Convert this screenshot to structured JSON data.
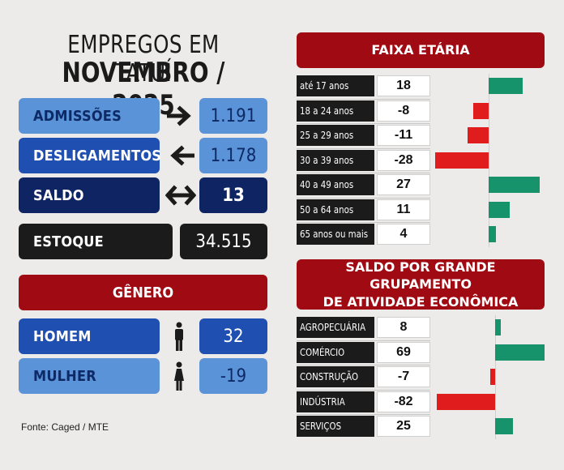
{
  "header": {
    "line1": "EMPREGOS EM TATUÍ",
    "line2": "NOVEMBRO / 2025"
  },
  "summary": [
    {
      "label": "ADMISSÕES",
      "value": "1.191",
      "arrow": "arrow-right-icon"
    },
    {
      "label": "DESLIGAMENTOS",
      "value": "1.178",
      "arrow": "arrow-left-icon"
    },
    {
      "label": "SALDO",
      "value": "13",
      "arrow": "arrow-left-right-icon"
    },
    {
      "label": "ESTOQUE",
      "value": "34.515"
    }
  ],
  "genero": {
    "title": "GÊNERO",
    "items": [
      {
        "label": "HOMEM",
        "value": "32",
        "icon": "man-icon"
      },
      {
        "label": "MULHER",
        "value": "-19",
        "icon": "woman-icon"
      }
    ]
  },
  "source": "Fonte: Caged / MTE",
  "colors": {
    "positive": "#16936a",
    "negative": "#e01c1c",
    "title_red": "#a00a12"
  },
  "chart_data": [
    {
      "type": "bar",
      "title": "FAIXA ETÁRIA",
      "orientation": "horizontal",
      "categories": [
        "até 17 anos",
        "18 a 24 anos",
        "25 a 29 anos",
        "30 a 39 anos",
        "40 a 49 anos",
        "50 a 64 anos",
        "65 anos ou mais"
      ],
      "values": [
        18,
        -8,
        -11,
        -28,
        27,
        11,
        4
      ],
      "grid": false
    },
    {
      "type": "bar",
      "title_line1": "SALDO POR GRANDE GRUPAMENTO",
      "title_line2": "DE ATIVIDADE ECONÔMICA",
      "orientation": "horizontal",
      "categories": [
        "AGROPECUÁRIA",
        "COMÉRCIO",
        "CONSTRUÇÃO",
        "INDÚSTRIA",
        "SERVIÇOS"
      ],
      "values": [
        8,
        69,
        -7,
        -82,
        25
      ],
      "grid": false
    }
  ]
}
